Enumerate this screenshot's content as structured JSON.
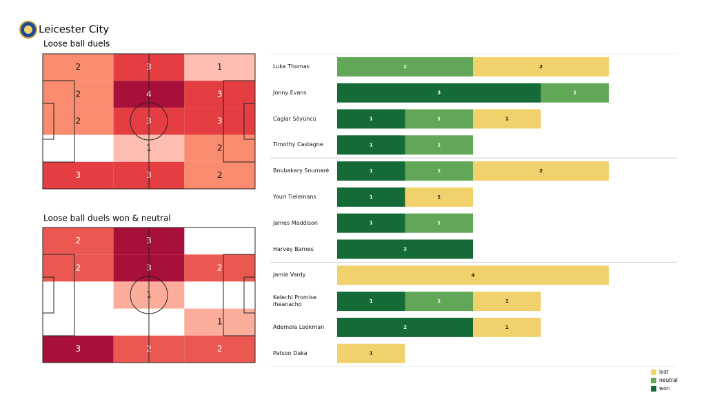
{
  "header": {
    "title": "Leicester City"
  },
  "chart_data": [
    {
      "type": "heatmap",
      "title": "Loose ball duels",
      "values": [
        [
          2,
          3,
          1
        ],
        [
          2,
          4,
          3
        ],
        [
          2,
          3,
          3
        ],
        [
          null,
          1,
          2
        ],
        [
          3,
          3,
          2
        ]
      ]
    },
    {
      "type": "heatmap",
      "title": "Loose ball duels won & neutral",
      "values": [
        [
          2,
          3,
          null
        ],
        [
          2,
          3,
          2
        ],
        [
          null,
          1,
          null
        ],
        [
          null,
          null,
          1
        ],
        [
          3,
          2,
          2
        ]
      ]
    },
    {
      "type": "bar",
      "orientation": "horizontal",
      "stacked": true,
      "legend": "lower right",
      "categories": [
        "Luke Thomas",
        "Jonny Evans",
        "Caglar Söyüncü",
        "Timothy Castagne",
        "Boubakary Soumaré",
        "Youri Tielemans",
        "James Maddison",
        "Harvey Barnes",
        "Jamie Vardy",
        "Kelechi Promise Iheanacho",
        "Ademola Lookman",
        "Patson Daka"
      ],
      "series": [
        {
          "name": "won",
          "color": "#156b38",
          "values": [
            null,
            3,
            1,
            1,
            1,
            1,
            1,
            2,
            null,
            1,
            2,
            null
          ]
        },
        {
          "name": "neutral",
          "color": "#62a757",
          "values": [
            2,
            1,
            1,
            1,
            1,
            null,
            1,
            null,
            null,
            1,
            null,
            null
          ]
        },
        {
          "name": "lost",
          "color": "#f1d16b",
          "values": [
            2,
            null,
            1,
            null,
            2,
            1,
            null,
            null,
            4,
            1,
            1,
            1
          ]
        }
      ]
    }
  ]
}
